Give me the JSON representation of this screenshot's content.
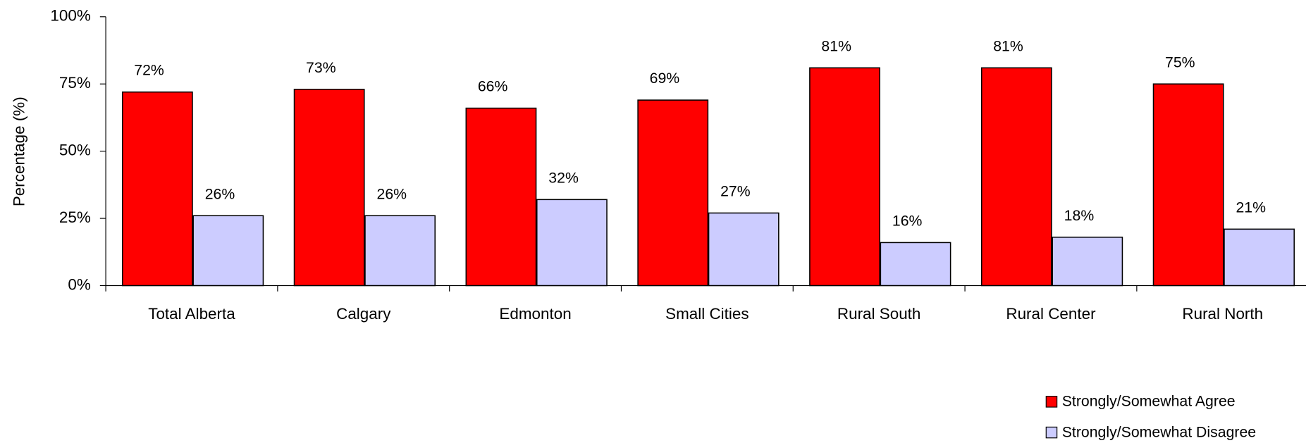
{
  "chart_data": {
    "type": "bar",
    "y_axis_label": "Percentage (%)",
    "categories": [
      "Total Alberta",
      "Calgary",
      "Edmonton",
      "Small Cities",
      "Rural South",
      "Rural Center",
      "Rural North"
    ],
    "series": [
      {
        "name": "Strongly/Somewhat Agree",
        "color": "#ff0000",
        "values": [
          72,
          73,
          66,
          69,
          81,
          81,
          75
        ],
        "value_labels": [
          "72%",
          "73%",
          "66%",
          "69%",
          "81%",
          "81%",
          "75%"
        ]
      },
      {
        "name": "Strongly/Somewhat Disagree",
        "color": "#ccccff",
        "values": [
          26,
          26,
          32,
          27,
          16,
          18,
          21
        ],
        "value_labels": [
          "26%",
          "26%",
          "32%",
          "27%",
          "16%",
          "18%",
          "21%"
        ]
      }
    ],
    "ylim": [
      0,
      100
    ],
    "yticks": [
      {
        "value": 0,
        "label": "0%"
      },
      {
        "value": 25,
        "label": "25%"
      },
      {
        "value": 50,
        "label": "50%"
      },
      {
        "value": 75,
        "label": "75%"
      },
      {
        "value": 100,
        "label": "100%"
      }
    ],
    "legend": "bottom-right"
  }
}
